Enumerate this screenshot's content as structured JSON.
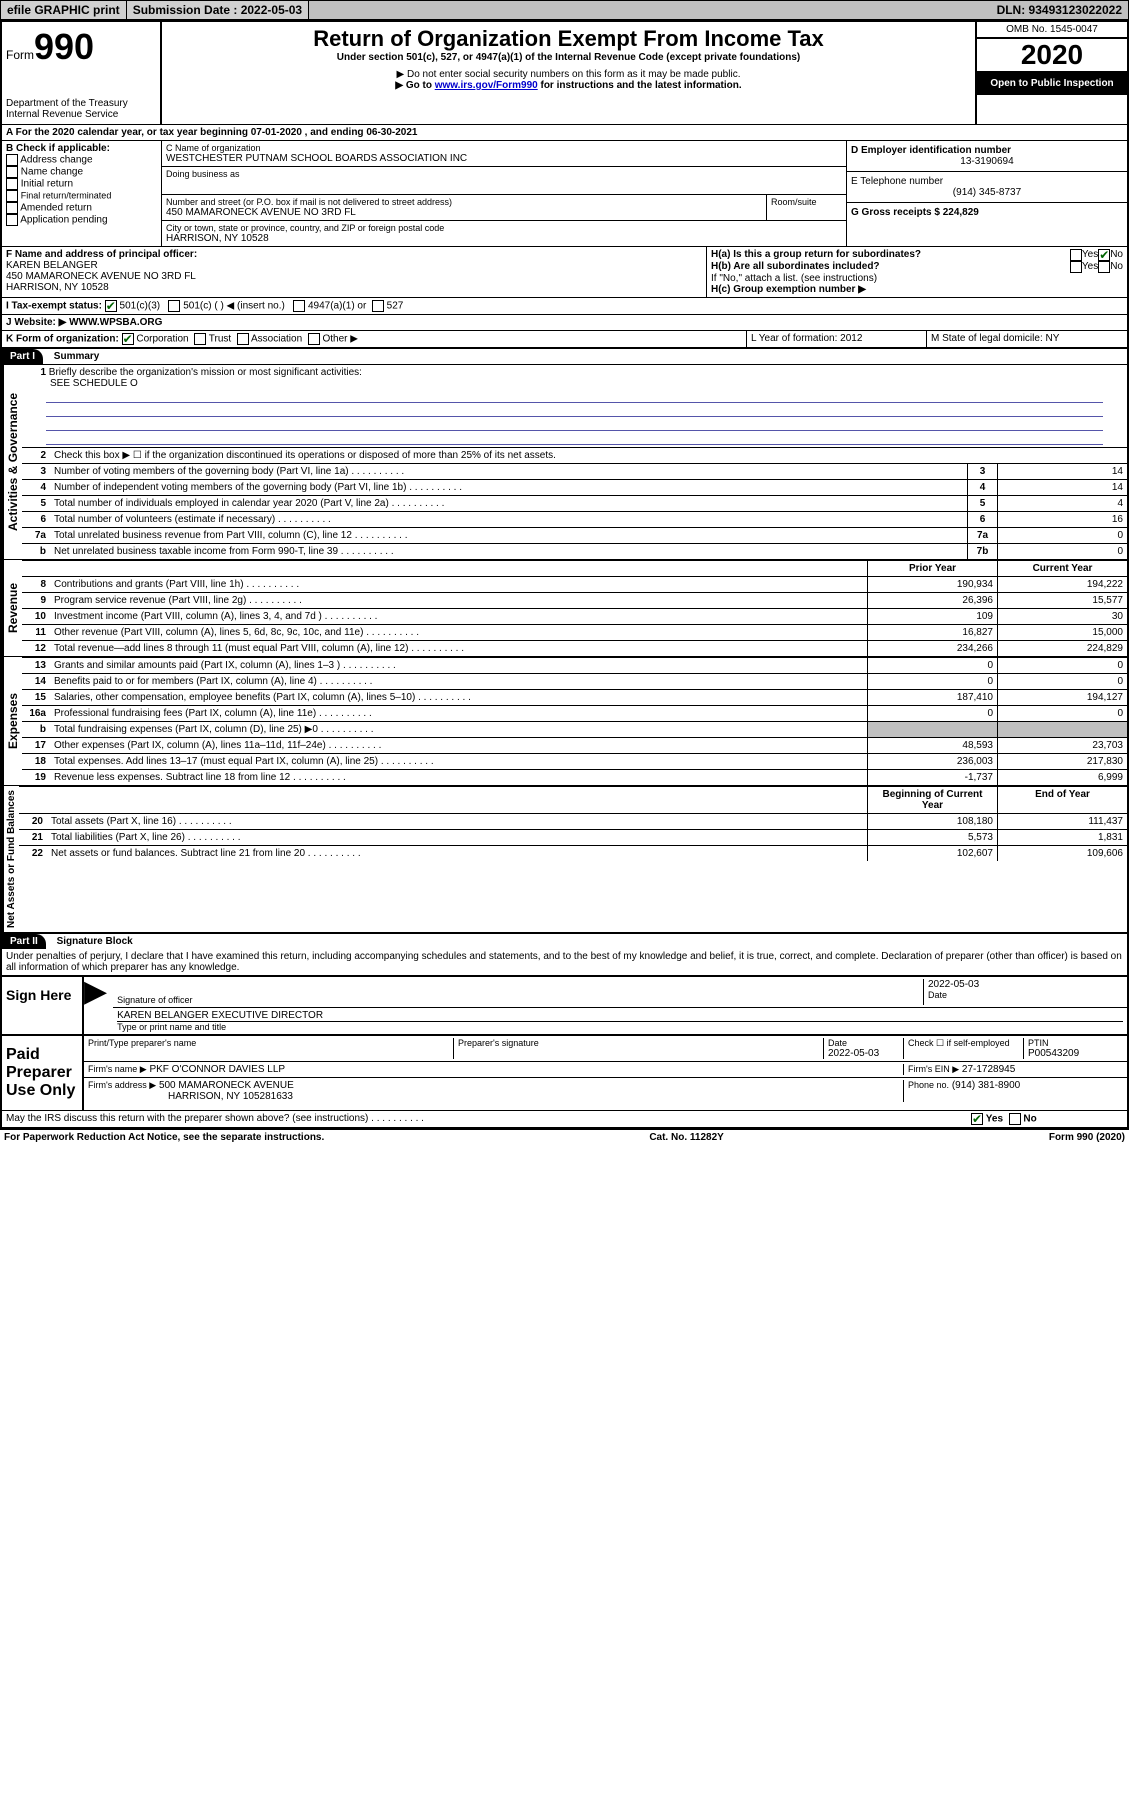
{
  "topbar": {
    "efile": "efile GRAPHIC print",
    "subdate_label": "Submission Date : 2022-05-03",
    "dln_label": "DLN: 93493123022022"
  },
  "header": {
    "form_word": "Form",
    "form_num": "990",
    "dept": "Department of the Treasury",
    "irs": "Internal Revenue Service",
    "title": "Return of Organization Exempt From Income Tax",
    "subtitle": "Under section 501(c), 527, or 4947(a)(1) of the Internal Revenue Code (except private foundations)",
    "note1": "▶ Do not enter social security numbers on this form as it may be made public.",
    "note2_pre": "▶ Go to ",
    "note2_link": "www.irs.gov/Form990",
    "note2_post": " for instructions and the latest information.",
    "omb": "OMB No. 1545-0047",
    "year": "2020",
    "open": "Open to Public Inspection"
  },
  "line_a": "A For the 2020 calendar year, or tax year beginning 07-01-2020   , and ending 06-30-2021",
  "box_b": {
    "label": "B Check if applicable:",
    "opts": [
      "Address change",
      "Name change",
      "Initial return",
      "Final return/terminated",
      "Amended return",
      "Application pending"
    ]
  },
  "box_c": {
    "name_label": "C Name of organization",
    "name": "WESTCHESTER PUTNAM SCHOOL BOARDS ASSOCIATION INC",
    "dba_label": "Doing business as",
    "addr_label": "Number and street (or P.O. box if mail is not delivered to street address)",
    "room_label": "Room/suite",
    "addr": "450 MAMARONECK AVENUE NO 3RD FL",
    "city_label": "City or town, state or province, country, and ZIP or foreign postal code",
    "city": "HARRISON, NY  10528"
  },
  "box_d": {
    "label": "D Employer identification number",
    "value": "13-3190694"
  },
  "box_e": {
    "label": "E Telephone number",
    "value": "(914) 345-8737"
  },
  "box_g": {
    "label": "G Gross receipts $ 224,829"
  },
  "box_f": {
    "label": "F Name and address of principal officer:",
    "name": "KAREN BELANGER",
    "addr1": "450 MAMARONECK AVENUE NO 3RD FL",
    "addr2": "HARRISON, NY  10528"
  },
  "box_h": {
    "ha": "H(a)  Is this a group return for subordinates?",
    "hb": "H(b)  Are all subordinates included?",
    "hb_note": "If \"No,\" attach a list. (see instructions)",
    "hc": "H(c)  Group exemption number ▶",
    "yes": "Yes",
    "no": "No"
  },
  "box_i": {
    "label": "I  Tax-exempt status:",
    "o1": "501(c)(3)",
    "o2": "501(c) (  ) ◀ (insert no.)",
    "o3": "4947(a)(1) or",
    "o4": "527"
  },
  "box_j": {
    "label": "J  Website: ▶",
    "value": "WWW.WPSBA.ORG"
  },
  "box_k": {
    "label": "K Form of organization:",
    "o1": "Corporation",
    "o2": "Trust",
    "o3": "Association",
    "o4": "Other ▶"
  },
  "box_l": {
    "label": "L Year of formation: 2012"
  },
  "box_m": {
    "label": "M State of legal domicile: NY"
  },
  "part1": {
    "label": "Part I",
    "title": "Summary"
  },
  "summary": {
    "line1": "Briefly describe the organization's mission or most significant activities:",
    "line1_val": "SEE SCHEDULE O",
    "line2": "Check this box ▶ ☐  if the organization discontinued its operations or disposed of more than 25% of its net assets.",
    "lines_gov": [
      {
        "n": "3",
        "d": "Number of voting members of the governing body (Part VI, line 1a)",
        "b": "3",
        "v": "14"
      },
      {
        "n": "4",
        "d": "Number of independent voting members of the governing body (Part VI, line 1b)",
        "b": "4",
        "v": "14"
      },
      {
        "n": "5",
        "d": "Total number of individuals employed in calendar year 2020 (Part V, line 2a)",
        "b": "5",
        "v": "4"
      },
      {
        "n": "6",
        "d": "Total number of volunteers (estimate if necessary)",
        "b": "6",
        "v": "16"
      },
      {
        "n": "7a",
        "d": "Total unrelated business revenue from Part VIII, column (C), line 12",
        "b": "7a",
        "v": "0"
      },
      {
        "n": "b",
        "d": "Net unrelated business taxable income from Form 990-T, line 39",
        "b": "7b",
        "v": "0"
      }
    ],
    "col_prior": "Prior Year",
    "col_current": "Current Year",
    "lines_rev": [
      {
        "n": "8",
        "d": "Contributions and grants (Part VIII, line 1h)",
        "p": "190,934",
        "c": "194,222"
      },
      {
        "n": "9",
        "d": "Program service revenue (Part VIII, line 2g)",
        "p": "26,396",
        "c": "15,577"
      },
      {
        "n": "10",
        "d": "Investment income (Part VIII, column (A), lines 3, 4, and 7d )",
        "p": "109",
        "c": "30"
      },
      {
        "n": "11",
        "d": "Other revenue (Part VIII, column (A), lines 5, 6d, 8c, 9c, 10c, and 11e)",
        "p": "16,827",
        "c": "15,000"
      },
      {
        "n": "12",
        "d": "Total revenue—add lines 8 through 11 (must equal Part VIII, column (A), line 12)",
        "p": "234,266",
        "c": "224,829"
      }
    ],
    "lines_exp": [
      {
        "n": "13",
        "d": "Grants and similar amounts paid (Part IX, column (A), lines 1–3 )",
        "p": "0",
        "c": "0"
      },
      {
        "n": "14",
        "d": "Benefits paid to or for members (Part IX, column (A), line 4)",
        "p": "0",
        "c": "0"
      },
      {
        "n": "15",
        "d": "Salaries, other compensation, employee benefits (Part IX, column (A), lines 5–10)",
        "p": "187,410",
        "c": "194,127"
      },
      {
        "n": "16a",
        "d": "Professional fundraising fees (Part IX, column (A), line 11e)",
        "p": "0",
        "c": "0"
      },
      {
        "n": "b",
        "d": "Total fundraising expenses (Part IX, column (D), line 25) ▶0",
        "p": "",
        "c": "grey"
      },
      {
        "n": "17",
        "d": "Other expenses (Part IX, column (A), lines 11a–11d, 11f–24e)",
        "p": "48,593",
        "c": "23,703"
      },
      {
        "n": "18",
        "d": "Total expenses. Add lines 13–17 (must equal Part IX, column (A), line 25)",
        "p": "236,003",
        "c": "217,830"
      },
      {
        "n": "19",
        "d": "Revenue less expenses. Subtract line 18 from line 12",
        "p": "-1,737",
        "c": "6,999"
      }
    ],
    "col_begin": "Beginning of Current Year",
    "col_end": "End of Year",
    "lines_net": [
      {
        "n": "20",
        "d": "Total assets (Part X, line 16)",
        "p": "108,180",
        "c": "111,437"
      },
      {
        "n": "21",
        "d": "Total liabilities (Part X, line 26)",
        "p": "5,573",
        "c": "1,831"
      },
      {
        "n": "22",
        "d": "Net assets or fund balances. Subtract line 21 from line 20",
        "p": "102,607",
        "c": "109,606"
      }
    ],
    "side_gov": "Activities & Governance",
    "side_rev": "Revenue",
    "side_exp": "Expenses",
    "side_net": "Net Assets or Fund Balances"
  },
  "part2": {
    "label": "Part II",
    "title": "Signature Block"
  },
  "perjury": "Under penalties of perjury, I declare that I have examined this return, including accompanying schedules and statements, and to the best of my knowledge and belief, it is true, correct, and complete. Declaration of preparer (other than officer) is based on all information of which preparer has any knowledge.",
  "sign": {
    "here": "Sign Here",
    "sig_officer": "Signature of officer",
    "date_label": "Date",
    "date": "2022-05-03",
    "name_title": "KAREN BELANGER  EXECUTIVE DIRECTOR",
    "type_label": "Type or print name and title"
  },
  "paid": {
    "label": "Paid Preparer Use Only",
    "h1": "Print/Type preparer's name",
    "h2": "Preparer's signature",
    "h3": "Date",
    "h4": "Check ☐  if self-employed",
    "h5": "PTIN",
    "date": "2022-05-03",
    "ptin": "P00543209",
    "firm_name_label": "Firm's name    ▶",
    "firm_name": "PKF O'CONNOR DAVIES LLP",
    "firm_ein_label": "Firm's EIN ▶",
    "firm_ein": "27-1728945",
    "firm_addr_label": "Firm's address ▶",
    "firm_addr1": "500 MAMARONECK AVENUE",
    "firm_addr2": "HARRISON, NY  105281633",
    "phone_label": "Phone no.",
    "phone": "(914) 381-8900"
  },
  "discuss": "May the IRS discuss this return with the preparer shown above? (see instructions)",
  "footer": {
    "left": "For Paperwork Reduction Act Notice, see the separate instructions.",
    "mid": "Cat. No. 11282Y",
    "right": "Form 990 (2020)"
  }
}
